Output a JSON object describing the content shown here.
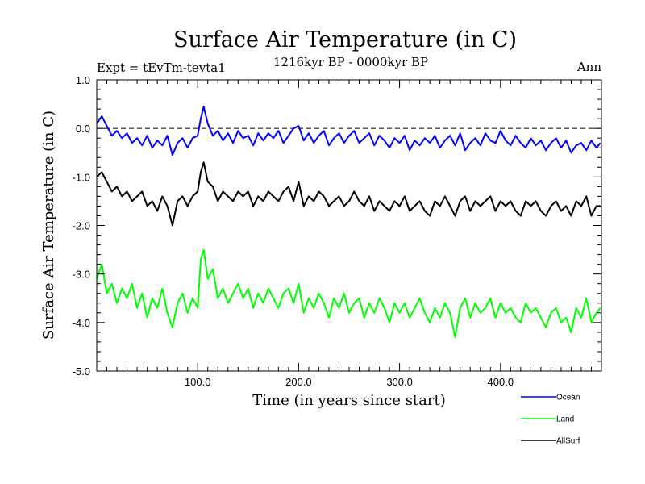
{
  "chart_data": {
    "type": "line",
    "title": "Surface Air Temperature (in C)",
    "subtitle_left": "Expt = tEvTm-tevta1",
    "subtitle_center": "1216kyr BP - 0000kyr BP",
    "subtitle_right": "Ann",
    "xlabel": "Time (in years since start)",
    "ylabel": "Surface Air Temperature (in C)",
    "xlim": [
      0,
      500
    ],
    "ylim": [
      -5.0,
      1.0
    ],
    "xticks": [
      100,
      200,
      300,
      400
    ],
    "xtick_labels": [
      "100.0",
      "200.0",
      "300.0",
      "400.0"
    ],
    "yticks": [
      1.0,
      0.0,
      -1.0,
      -2.0,
      -3.0,
      -4.0,
      -5.0
    ],
    "ytick_labels": [
      "1.0",
      "0.0",
      "-1.0",
      "-2.0",
      "-3.0",
      "-4.0",
      "-5.0"
    ],
    "reference_line": {
      "y": 0.0,
      "style": "dashed"
    },
    "legend_position": "bottom-right",
    "series": [
      {
        "name": "Ocean",
        "color": "#0000ff",
        "x": [
          0,
          5,
          10,
          15,
          20,
          25,
          30,
          35,
          40,
          45,
          50,
          55,
          60,
          65,
          70,
          75,
          80,
          85,
          90,
          95,
          100,
          103,
          106,
          110,
          115,
          120,
          125,
          130,
          135,
          140,
          145,
          150,
          155,
          160,
          165,
          170,
          175,
          180,
          185,
          190,
          195,
          200,
          205,
          210,
          215,
          220,
          225,
          230,
          235,
          240,
          245,
          250,
          255,
          260,
          265,
          270,
          275,
          280,
          285,
          290,
          295,
          300,
          305,
          310,
          315,
          320,
          325,
          330,
          335,
          340,
          345,
          350,
          355,
          360,
          365,
          370,
          375,
          380,
          385,
          390,
          395,
          400,
          405,
          410,
          415,
          420,
          425,
          430,
          435,
          440,
          445,
          450,
          455,
          460,
          465,
          470,
          475,
          480,
          485,
          490,
          495,
          499
        ],
        "values": [
          0.1,
          0.25,
          0.05,
          -0.15,
          -0.05,
          -0.2,
          -0.1,
          -0.3,
          -0.2,
          -0.35,
          -0.15,
          -0.4,
          -0.25,
          -0.35,
          -0.15,
          -0.55,
          -0.3,
          -0.2,
          -0.4,
          -0.2,
          -0.15,
          0.2,
          0.45,
          0.1,
          -0.15,
          -0.05,
          -0.25,
          -0.1,
          -0.3,
          -0.05,
          -0.2,
          -0.15,
          -0.35,
          -0.1,
          -0.25,
          -0.1,
          -0.2,
          -0.05,
          -0.3,
          -0.15,
          0.0,
          0.05,
          -0.25,
          -0.1,
          -0.3,
          -0.15,
          -0.05,
          -0.35,
          -0.2,
          -0.1,
          -0.3,
          -0.15,
          -0.05,
          -0.3,
          -0.2,
          -0.1,
          -0.35,
          -0.15,
          -0.25,
          -0.4,
          -0.2,
          -0.3,
          -0.15,
          -0.45,
          -0.25,
          -0.35,
          -0.2,
          -0.3,
          -0.15,
          -0.4,
          -0.25,
          -0.15,
          -0.35,
          -0.1,
          -0.45,
          -0.3,
          -0.2,
          -0.35,
          -0.1,
          -0.25,
          -0.3,
          -0.05,
          -0.25,
          -0.35,
          -0.15,
          -0.3,
          -0.4,
          -0.2,
          -0.35,
          -0.25,
          -0.45,
          -0.3,
          -0.2,
          -0.4,
          -0.25,
          -0.5,
          -0.35,
          -0.3,
          -0.45,
          -0.25,
          -0.4,
          -0.3
        ]
      },
      {
        "name": "Land",
        "color": "#00ff00",
        "x": [
          0,
          5,
          10,
          15,
          20,
          25,
          30,
          35,
          40,
          45,
          50,
          55,
          60,
          65,
          70,
          75,
          80,
          85,
          90,
          95,
          100,
          103,
          106,
          110,
          115,
          120,
          125,
          130,
          135,
          140,
          145,
          150,
          155,
          160,
          165,
          170,
          175,
          180,
          185,
          190,
          195,
          200,
          205,
          210,
          215,
          220,
          225,
          230,
          235,
          240,
          245,
          250,
          255,
          260,
          265,
          270,
          275,
          280,
          285,
          290,
          295,
          300,
          305,
          310,
          315,
          320,
          325,
          330,
          335,
          340,
          345,
          350,
          355,
          360,
          365,
          370,
          375,
          380,
          385,
          390,
          395,
          400,
          405,
          410,
          415,
          420,
          425,
          430,
          435,
          440,
          445,
          450,
          455,
          460,
          465,
          470,
          475,
          480,
          485,
          490,
          495,
          499
        ],
        "values": [
          -3.1,
          -2.8,
          -3.4,
          -3.2,
          -3.6,
          -3.3,
          -3.5,
          -3.2,
          -3.7,
          -3.4,
          -3.9,
          -3.5,
          -3.7,
          -3.3,
          -3.8,
          -4.1,
          -3.6,
          -3.4,
          -3.8,
          -3.5,
          -3.7,
          -2.7,
          -2.5,
          -3.1,
          -2.9,
          -3.5,
          -3.3,
          -3.6,
          -3.4,
          -3.2,
          -3.5,
          -3.3,
          -3.7,
          -3.4,
          -3.6,
          -3.3,
          -3.5,
          -3.7,
          -3.4,
          -3.3,
          -3.6,
          -3.2,
          -3.8,
          -3.5,
          -3.7,
          -3.4,
          -3.6,
          -3.9,
          -3.5,
          -3.7,
          -3.4,
          -3.8,
          -3.6,
          -3.5,
          -3.9,
          -3.6,
          -3.8,
          -3.5,
          -3.7,
          -4.0,
          -3.6,
          -3.8,
          -3.6,
          -3.9,
          -3.7,
          -3.5,
          -3.8,
          -4.0,
          -3.7,
          -3.9,
          -3.6,
          -3.8,
          -4.3,
          -3.7,
          -3.5,
          -3.9,
          -3.6,
          -3.8,
          -3.7,
          -3.5,
          -3.9,
          -3.6,
          -3.8,
          -3.7,
          -3.9,
          -4.0,
          -3.6,
          -3.8,
          -3.7,
          -3.9,
          -4.1,
          -3.8,
          -3.7,
          -4.0,
          -3.9,
          -4.2,
          -3.7,
          -3.9,
          -3.5,
          -4.0,
          -3.8,
          -3.7
        ]
      },
      {
        "name": "AllSurf",
        "color": "#000000",
        "x": [
          0,
          5,
          10,
          15,
          20,
          25,
          30,
          35,
          40,
          45,
          50,
          55,
          60,
          65,
          70,
          75,
          80,
          85,
          90,
          95,
          100,
          103,
          106,
          110,
          115,
          120,
          125,
          130,
          135,
          140,
          145,
          150,
          155,
          160,
          165,
          170,
          175,
          180,
          185,
          190,
          195,
          200,
          205,
          210,
          215,
          220,
          225,
          230,
          235,
          240,
          245,
          250,
          255,
          260,
          265,
          270,
          275,
          280,
          285,
          290,
          295,
          300,
          305,
          310,
          315,
          320,
          325,
          330,
          335,
          340,
          345,
          350,
          355,
          360,
          365,
          370,
          375,
          380,
          385,
          390,
          395,
          400,
          405,
          410,
          415,
          420,
          425,
          430,
          435,
          440,
          445,
          450,
          455,
          460,
          465,
          470,
          475,
          480,
          485,
          490,
          495,
          499
        ],
        "values": [
          -1.0,
          -0.9,
          -1.1,
          -1.3,
          -1.2,
          -1.4,
          -1.3,
          -1.5,
          -1.4,
          -1.3,
          -1.6,
          -1.5,
          -1.7,
          -1.4,
          -1.6,
          -2.0,
          -1.5,
          -1.4,
          -1.6,
          -1.4,
          -1.3,
          -0.9,
          -0.7,
          -1.1,
          -1.2,
          -1.5,
          -1.3,
          -1.4,
          -1.5,
          -1.3,
          -1.4,
          -1.3,
          -1.6,
          -1.4,
          -1.5,
          -1.3,
          -1.4,
          -1.5,
          -1.3,
          -1.2,
          -1.5,
          -1.1,
          -1.6,
          -1.4,
          -1.5,
          -1.3,
          -1.4,
          -1.6,
          -1.5,
          -1.4,
          -1.6,
          -1.5,
          -1.3,
          -1.5,
          -1.6,
          -1.4,
          -1.7,
          -1.5,
          -1.6,
          -1.7,
          -1.5,
          -1.6,
          -1.4,
          -1.7,
          -1.6,
          -1.5,
          -1.7,
          -1.8,
          -1.5,
          -1.6,
          -1.4,
          -1.6,
          -1.8,
          -1.5,
          -1.4,
          -1.7,
          -1.5,
          -1.6,
          -1.5,
          -1.4,
          -1.7,
          -1.5,
          -1.6,
          -1.5,
          -1.7,
          -1.8,
          -1.5,
          -1.6,
          -1.5,
          -1.7,
          -1.8,
          -1.6,
          -1.5,
          -1.7,
          -1.6,
          -1.8,
          -1.5,
          -1.6,
          -1.4,
          -1.8,
          -1.6,
          -1.6
        ]
      }
    ]
  }
}
